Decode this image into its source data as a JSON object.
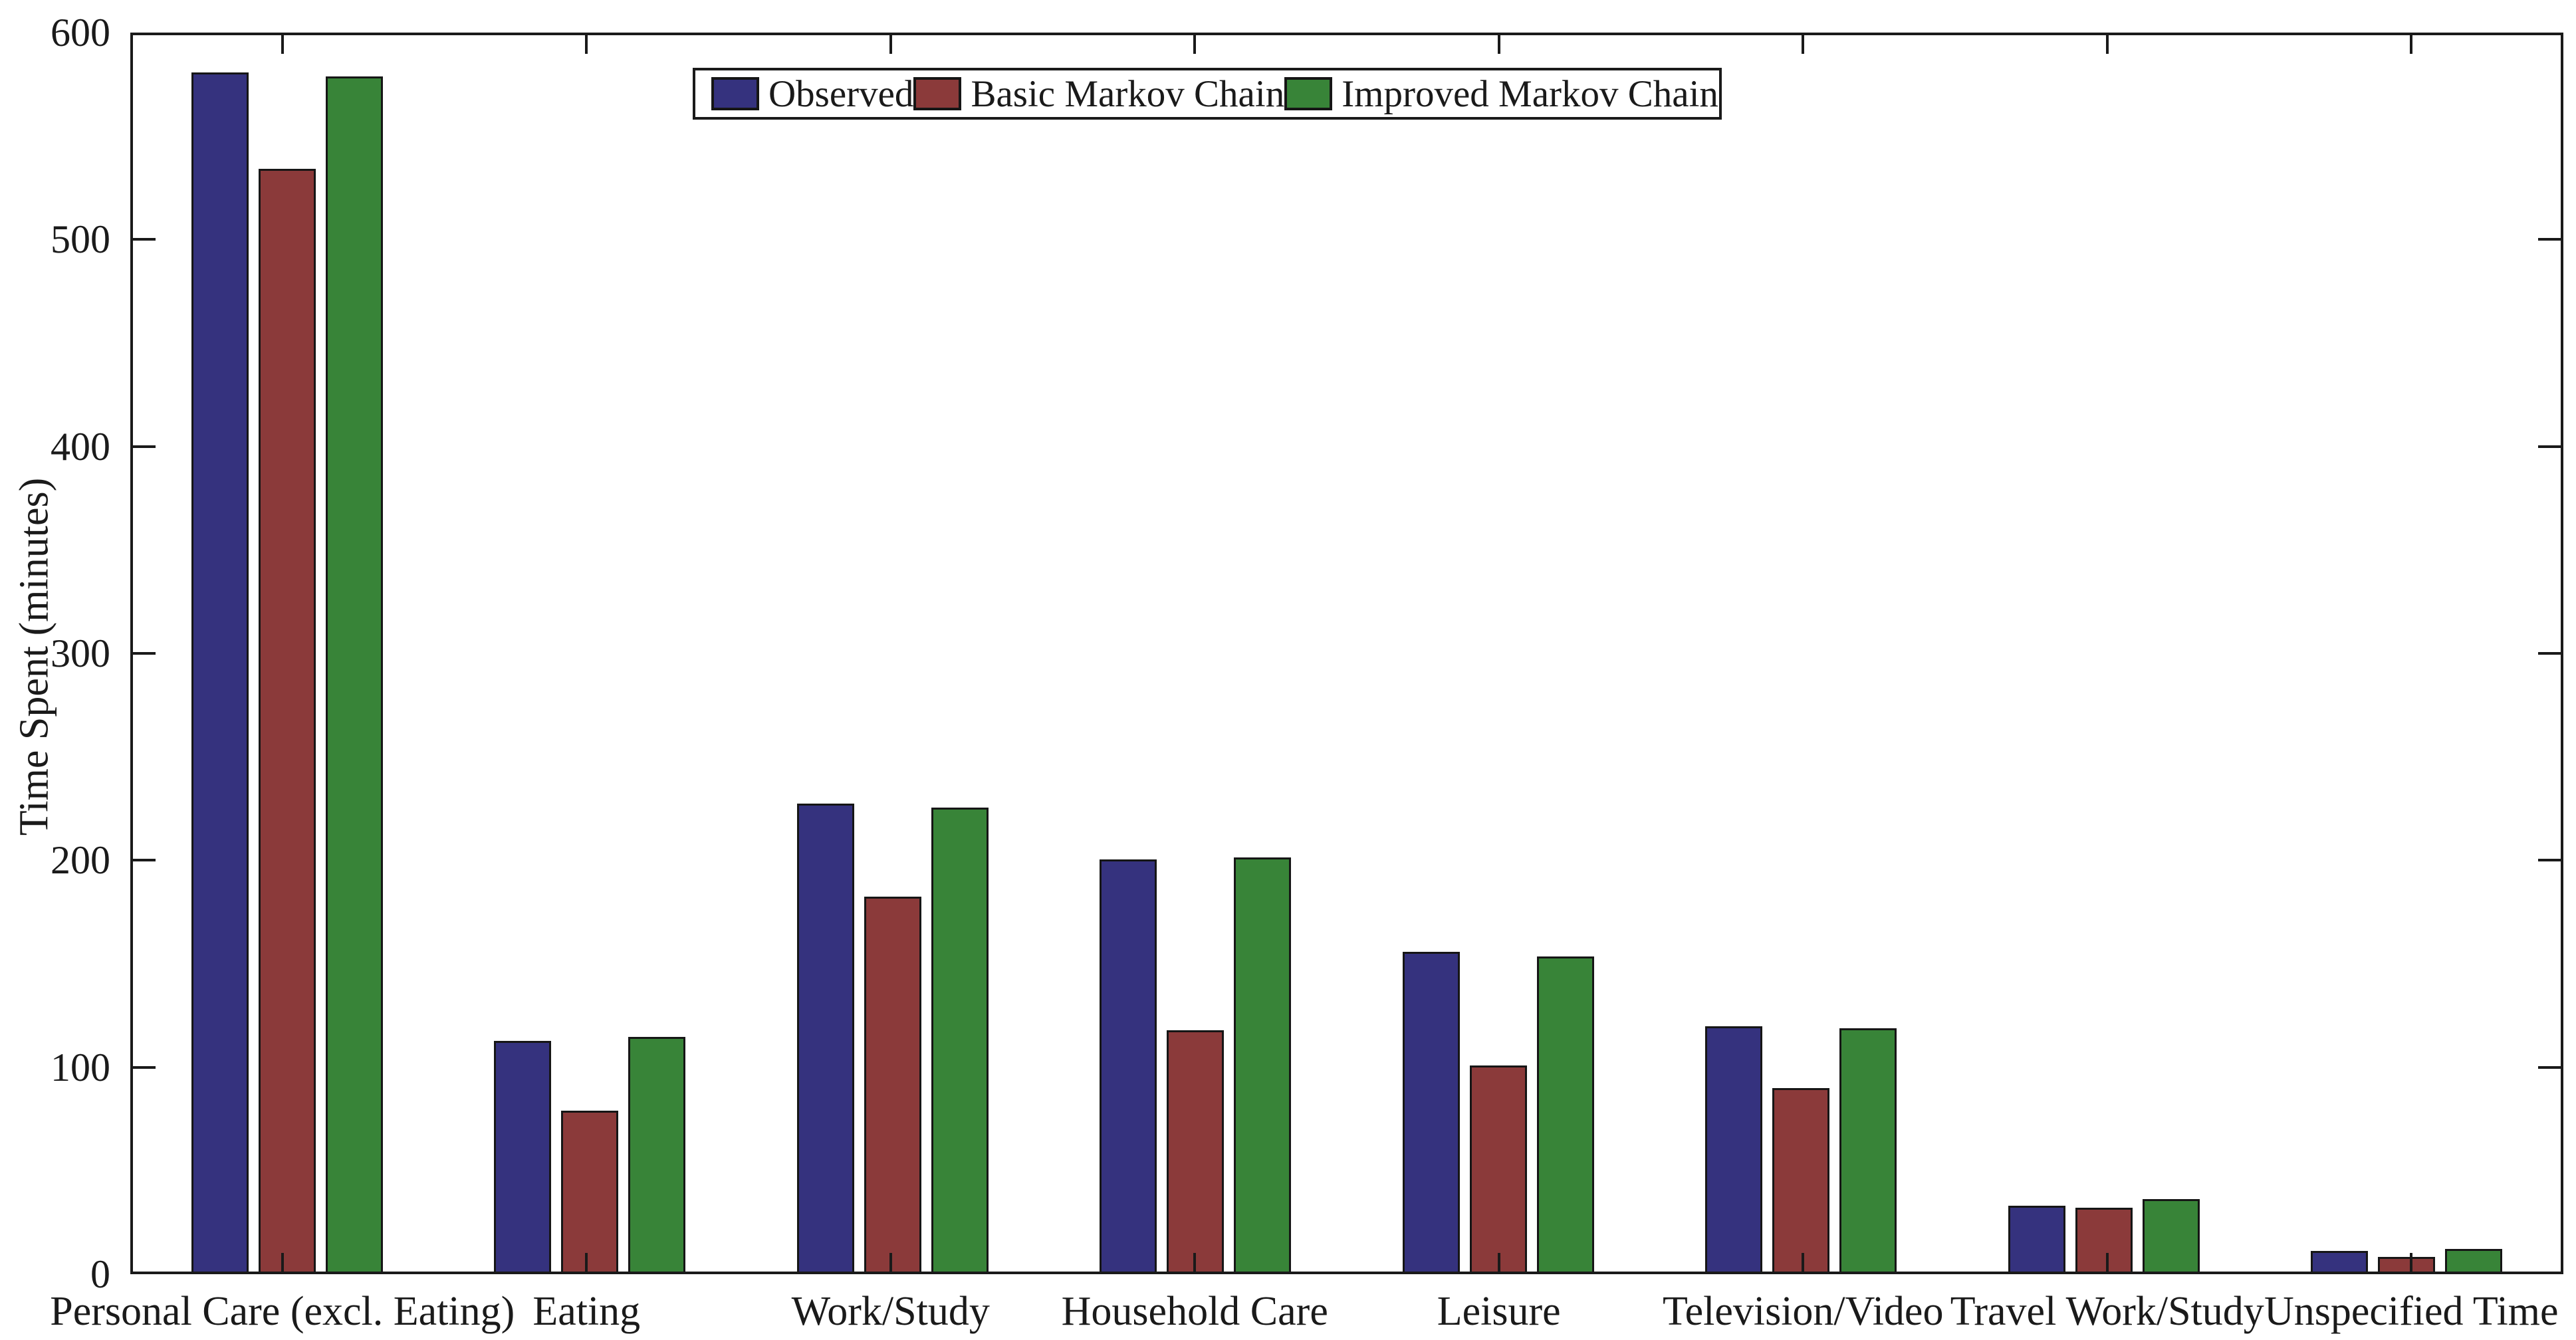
{
  "chart_data": {
    "type": "bar",
    "title": "",
    "xlabel": "",
    "ylabel": "Time Spent (minutes)",
    "ylim": [
      0,
      600
    ],
    "yticks": [
      0,
      100,
      200,
      300,
      400,
      500,
      600
    ],
    "grid": false,
    "legend_position": "top-center-inside",
    "background": "#ffffff",
    "axis_color": "#1a1a1a",
    "categories": [
      "Personal Care (excl. Eating)",
      "Eating",
      "Work/Study",
      "Household Care",
      "Leisure",
      "Television/Video",
      "Travel Work/Study",
      "Unspecified Time"
    ],
    "series": [
      {
        "name": "Observed",
        "color": "#35327E",
        "values": [
          582,
          112,
          227,
          200,
          155,
          119,
          32,
          10
        ]
      },
      {
        "name": "Basic Markov Chain",
        "color": "#8B3A3A",
        "values": [
          535,
          78,
          182,
          117,
          100,
          89,
          31,
          7
        ]
      },
      {
        "name": "Improved Markov Chain",
        "color": "#388438",
        "values": [
          580,
          114,
          225,
          201,
          153,
          118,
          35,
          11
        ]
      }
    ]
  }
}
